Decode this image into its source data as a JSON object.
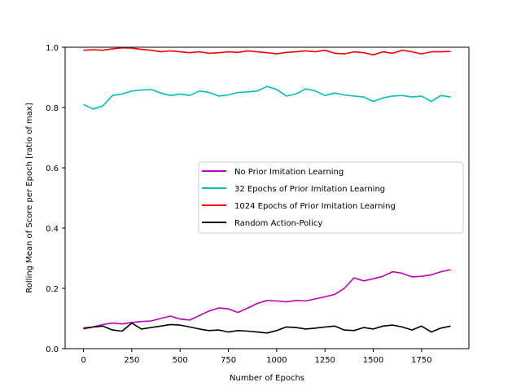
{
  "chart_data": {
    "type": "line",
    "title": "",
    "xlabel": "Number of Epochs",
    "ylabel": "Rolling Mean of Score per Epoch [ratio of max]",
    "xlim": [
      -95,
      1995
    ],
    "ylim": [
      0.0,
      1.0
    ],
    "xticks": [
      0,
      250,
      500,
      750,
      1000,
      1250,
      1500,
      1750
    ],
    "yticks": [
      0.0,
      0.2,
      0.4,
      0.6,
      0.8,
      1.0
    ],
    "xtick_labels": [
      "0",
      "250",
      "500",
      "750",
      "1000",
      "1250",
      "1500",
      "1750"
    ],
    "ytick_labels": [
      "0.0",
      "0.2",
      "0.4",
      "0.6",
      "0.8",
      "1.0"
    ],
    "grid": false,
    "legend_position": "center-right",
    "series": [
      {
        "name": "No Prior Imitation Learning",
        "color": "#bf00bf",
        "x": [
          0,
          50,
          100,
          150,
          200,
          250,
          300,
          350,
          400,
          450,
          500,
          550,
          600,
          650,
          700,
          750,
          800,
          850,
          900,
          950,
          1000,
          1050,
          1100,
          1150,
          1200,
          1250,
          1300,
          1350,
          1400,
          1450,
          1500,
          1550,
          1600,
          1650,
          1700,
          1750,
          1800,
          1850,
          1900
        ],
        "y": [
          0.065,
          0.072,
          0.08,
          0.085,
          0.082,
          0.087,
          0.09,
          0.092,
          0.1,
          0.108,
          0.098,
          0.095,
          0.11,
          0.125,
          0.135,
          0.132,
          0.12,
          0.135,
          0.15,
          0.16,
          0.158,
          0.155,
          0.16,
          0.158,
          0.165,
          0.172,
          0.18,
          0.2,
          0.235,
          0.225,
          0.232,
          0.24,
          0.255,
          0.25,
          0.238,
          0.24,
          0.245,
          0.255,
          0.262
        ]
      },
      {
        "name": "32 Epochs of Prior Imitation Learning",
        "color": "#00bfbf",
        "x": [
          0,
          50,
          100,
          150,
          200,
          250,
          300,
          350,
          400,
          450,
          500,
          550,
          600,
          650,
          700,
          750,
          800,
          850,
          900,
          950,
          1000,
          1050,
          1100,
          1150,
          1200,
          1250,
          1300,
          1350,
          1400,
          1450,
          1500,
          1550,
          1600,
          1650,
          1700,
          1750,
          1800,
          1850,
          1900
        ],
        "y": [
          0.81,
          0.795,
          0.805,
          0.84,
          0.845,
          0.855,
          0.858,
          0.86,
          0.848,
          0.84,
          0.845,
          0.84,
          0.855,
          0.85,
          0.838,
          0.842,
          0.85,
          0.852,
          0.855,
          0.87,
          0.86,
          0.838,
          0.845,
          0.862,
          0.855,
          0.84,
          0.848,
          0.842,
          0.838,
          0.835,
          0.82,
          0.832,
          0.838,
          0.84,
          0.835,
          0.838,
          0.82,
          0.84,
          0.835
        ]
      },
      {
        "name": "1024 Epochs of Prior Imitation Learning",
        "color": "#ff0000",
        "x": [
          0,
          50,
          100,
          150,
          200,
          250,
          300,
          350,
          400,
          450,
          500,
          550,
          600,
          650,
          700,
          750,
          800,
          850,
          900,
          950,
          1000,
          1050,
          1100,
          1150,
          1200,
          1250,
          1300,
          1350,
          1400,
          1450,
          1500,
          1550,
          1600,
          1650,
          1700,
          1750,
          1800,
          1850,
          1900
        ],
        "y": [
          0.99,
          0.992,
          0.99,
          0.995,
          0.998,
          0.997,
          0.993,
          0.99,
          0.985,
          0.988,
          0.985,
          0.982,
          0.985,
          0.98,
          0.982,
          0.985,
          0.983,
          0.988,
          0.985,
          0.982,
          0.978,
          0.983,
          0.985,
          0.988,
          0.985,
          0.99,
          0.98,
          0.978,
          0.985,
          0.982,
          0.975,
          0.985,
          0.98,
          0.99,
          0.985,
          0.978,
          0.985,
          0.985,
          0.986
        ]
      },
      {
        "name": "Random Action-Policy",
        "color": "#000000",
        "x": [
          0,
          50,
          100,
          150,
          200,
          250,
          300,
          350,
          400,
          450,
          500,
          550,
          600,
          650,
          700,
          750,
          800,
          850,
          900,
          950,
          1000,
          1050,
          1100,
          1150,
          1200,
          1250,
          1300,
          1350,
          1400,
          1450,
          1500,
          1550,
          1600,
          1650,
          1700,
          1750,
          1800,
          1850,
          1900
        ],
        "y": [
          0.068,
          0.072,
          0.075,
          0.062,
          0.058,
          0.085,
          0.065,
          0.07,
          0.075,
          0.08,
          0.078,
          0.072,
          0.065,
          0.06,
          0.062,
          0.055,
          0.06,
          0.058,
          0.055,
          0.052,
          0.06,
          0.072,
          0.07,
          0.065,
          0.068,
          0.072,
          0.075,
          0.062,
          0.06,
          0.07,
          0.065,
          0.075,
          0.078,
          0.072,
          0.062,
          0.075,
          0.055,
          0.068,
          0.075
        ]
      }
    ]
  }
}
